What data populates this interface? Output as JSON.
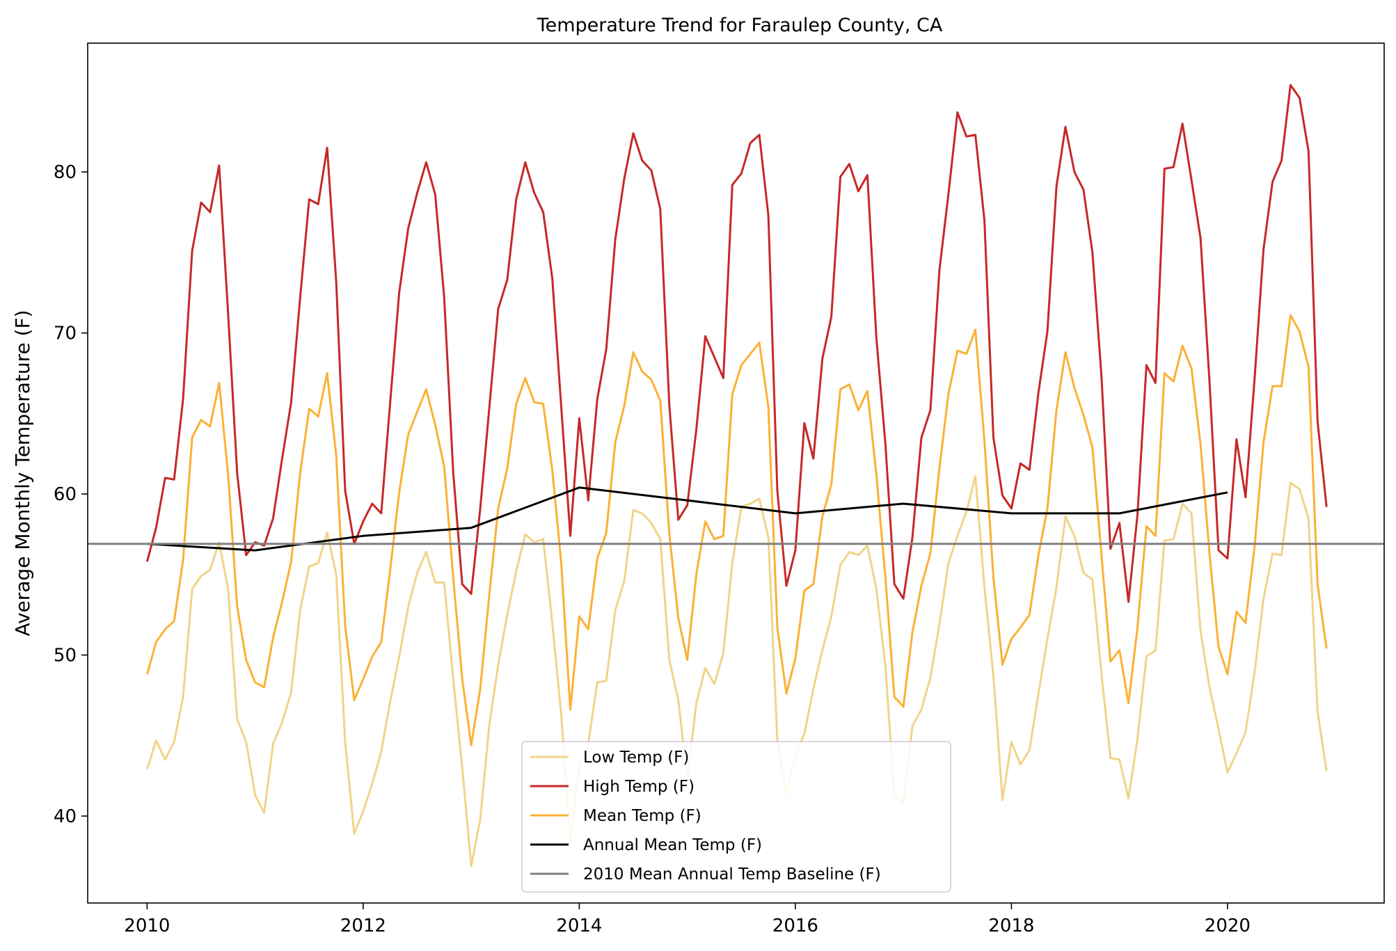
{
  "chart_data": {
    "type": "line",
    "title": "Temperature Trend for Faraulep County, CA",
    "xlabel": "",
    "ylabel": "Average Monthly Temperature (F)",
    "xlim": [
      2009.45,
      2021.45
    ],
    "ylim": [
      34.6,
      88.0
    ],
    "xticks": [
      2010,
      2012,
      2014,
      2016,
      2018,
      2020
    ],
    "yticks": [
      40,
      50,
      60,
      70,
      80
    ],
    "grid": false,
    "legend_position": "lower center",
    "month_start": 2010.0,
    "series": [
      {
        "name": "Low Temp (F)",
        "color": "#f0d48a",
        "width": 3,
        "values": [
          42.9,
          44.7,
          43.5,
          44.6,
          47.4,
          54.1,
          54.9,
          55.3,
          57.0,
          54.1,
          46.0,
          44.6,
          41.3,
          40.2,
          44.5,
          45.8,
          47.7,
          52.8,
          55.5,
          55.7,
          57.6,
          55.0,
          44.6,
          38.9,
          40.3,
          42.0,
          44.0,
          47.1,
          49.9,
          53.0,
          55.1,
          56.4,
          54.5,
          54.5,
          48.5,
          43.0,
          36.9,
          39.8,
          45.6,
          49.4,
          52.5,
          55.2,
          57.5,
          57.0,
          57.2,
          52.0,
          46.3,
          38.4,
          43.1,
          44.5,
          48.3,
          48.4,
          52.8,
          54.6,
          59.0,
          58.8,
          58.2,
          57.2,
          49.7,
          47.2,
          42.3,
          47.0,
          49.2,
          48.2,
          50.1,
          55.7,
          59.2,
          59.4,
          59.7,
          57.3,
          44.7,
          41.3,
          43.8,
          45.1,
          47.9,
          50.3,
          52.4,
          55.6,
          56.4,
          56.2,
          56.8,
          54.1,
          49.3,
          41.3,
          40.8,
          45.6,
          46.6,
          48.6,
          51.9,
          55.7,
          57.4,
          58.9,
          61.1,
          54.2,
          48.7,
          41.0,
          44.6,
          43.2,
          44.1,
          47.6,
          51.0,
          54.2,
          58.6,
          57.4,
          55.1,
          54.7,
          48.8,
          43.6,
          43.5,
          41.1,
          44.8,
          49.9,
          50.3,
          57.1,
          57.2,
          59.4,
          58.8,
          51.5,
          48.0,
          45.4,
          42.7,
          43.9,
          45.2,
          48.9,
          53.5,
          56.3,
          56.2,
          60.7,
          60.3,
          58.5,
          46.5,
          42.8
        ]
      },
      {
        "name": "High Temp (F)",
        "color": "#c62828",
        "width": 3,
        "values": [
          55.8,
          57.9,
          61.0,
          60.9,
          65.9,
          75.1,
          78.1,
          77.5,
          80.4,
          71.2,
          61.3,
          56.2,
          57.0,
          56.8,
          58.5,
          62.2,
          65.7,
          72.2,
          78.3,
          78.0,
          81.5,
          73.2,
          60.2,
          56.9,
          58.3,
          59.4,
          58.8,
          65.7,
          72.5,
          76.5,
          78.7,
          80.6,
          78.6,
          72.2,
          61.3,
          54.4,
          53.8,
          59.1,
          65.3,
          71.5,
          73.3,
          78.3,
          80.6,
          78.7,
          77.5,
          73.4,
          65.4,
          57.4,
          64.7,
          59.6,
          65.9,
          69.0,
          75.8,
          79.6,
          82.4,
          80.7,
          80.1,
          77.7,
          65.5,
          58.4,
          59.3,
          64.0,
          69.8,
          68.5,
          67.2,
          79.2,
          79.9,
          81.8,
          82.3,
          77.3,
          60.2,
          54.3,
          56.5,
          64.4,
          62.2,
          68.4,
          71.0,
          79.7,
          80.5,
          78.8,
          79.8,
          69.7,
          63.1,
          54.4,
          53.5,
          57.3,
          63.5,
          65.2,
          73.9,
          78.6,
          83.7,
          82.2,
          82.3,
          77.0,
          63.5,
          59.9,
          59.1,
          61.9,
          61.5,
          66.3,
          70.1,
          79.1,
          82.8,
          80.0,
          78.9,
          75.0,
          67.3,
          56.6,
          58.2,
          53.3,
          58.7,
          68.0,
          66.9,
          80.2,
          80.3,
          83.0,
          79.5,
          75.9,
          67.0,
          56.5,
          56.0,
          63.4,
          59.8,
          67.1,
          75.2,
          79.4,
          80.7,
          85.4,
          84.6,
          81.3,
          64.5,
          59.2
        ]
      },
      {
        "name": "Mean Temp (F)",
        "color": "#fbb135",
        "width": 3,
        "values": [
          48.8,
          50.8,
          51.6,
          52.1,
          55.9,
          63.5,
          64.6,
          64.2,
          66.9,
          61.2,
          53.0,
          49.7,
          48.3,
          48.0,
          51.1,
          53.3,
          55.8,
          61.3,
          65.3,
          64.8,
          67.5,
          62.4,
          51.8,
          47.2,
          48.5,
          49.9,
          50.8,
          55.3,
          60.1,
          63.7,
          65.1,
          66.5,
          64.3,
          61.7,
          54.8,
          48.5,
          44.4,
          47.9,
          53.7,
          59.1,
          61.6,
          65.6,
          67.2,
          65.7,
          65.6,
          61.5,
          55.7,
          46.6,
          52.4,
          51.6,
          56.0,
          57.6,
          63.2,
          65.5,
          68.8,
          67.6,
          67.1,
          65.8,
          57.5,
          52.3,
          49.7,
          55.0,
          58.3,
          57.2,
          57.4,
          66.2,
          68.0,
          68.7,
          69.4,
          65.4,
          51.7,
          47.6,
          49.8,
          54.0,
          54.4,
          58.6,
          60.6,
          66.5,
          66.8,
          65.2,
          66.4,
          61.2,
          54.8,
          47.4,
          46.8,
          51.4,
          54.3,
          56.3,
          61.6,
          66.2,
          68.9,
          68.7,
          70.2,
          63.3,
          54.8,
          49.4,
          51.0,
          51.7,
          52.5,
          56.2,
          59.1,
          65.2,
          68.8,
          66.6,
          64.9,
          62.9,
          56.2,
          49.6,
          50.3,
          47.0,
          51.7,
          58.0,
          57.4,
          67.5,
          67.0,
          69.2,
          67.8,
          63.1,
          56.3,
          50.5,
          48.8,
          52.7,
          52.0,
          56.7,
          63.2,
          66.7,
          66.7,
          71.1,
          70.1,
          67.9,
          54.4,
          50.4
        ]
      },
      {
        "name": "Annual Mean Temp (F)",
        "color": "#000000",
        "width": 3,
        "x": [
          2010,
          2011,
          2012,
          2013,
          2014,
          2015,
          2016,
          2017,
          2018,
          2019,
          2020
        ],
        "values": [
          56.9,
          56.5,
          57.4,
          57.9,
          60.4,
          59.6,
          58.8,
          59.4,
          58.8,
          58.8,
          60.1
        ]
      },
      {
        "name": "2010 Mean Annual Temp Baseline (F)",
        "color": "#808080",
        "width": 3,
        "baseline": 56.9
      }
    ]
  }
}
